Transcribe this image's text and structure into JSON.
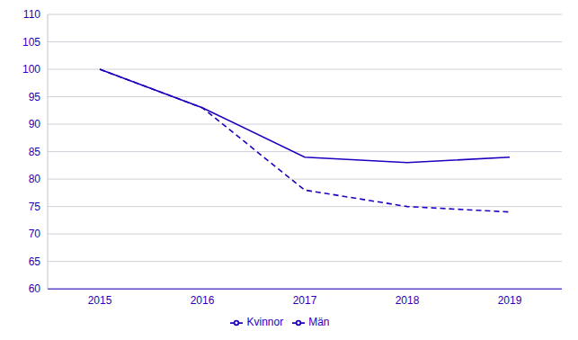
{
  "chart_data": {
    "type": "line",
    "categories": [
      "2015",
      "2016",
      "2017",
      "2018",
      "2019"
    ],
    "series": [
      {
        "name": "Kvinnor",
        "color": "#1e00be",
        "line_style": "solid",
        "values": [
          100,
          93,
          84,
          83,
          84
        ]
      },
      {
        "name": "Män",
        "color": "#1e00be",
        "line_style": "dashed",
        "values": [
          100,
          93,
          78,
          75,
          74
        ]
      }
    ],
    "ylim": [
      60,
      110
    ],
    "yticks": [
      60,
      65,
      70,
      75,
      80,
      85,
      90,
      95,
      100,
      105,
      110
    ],
    "grid": true,
    "legend": "bottom"
  }
}
